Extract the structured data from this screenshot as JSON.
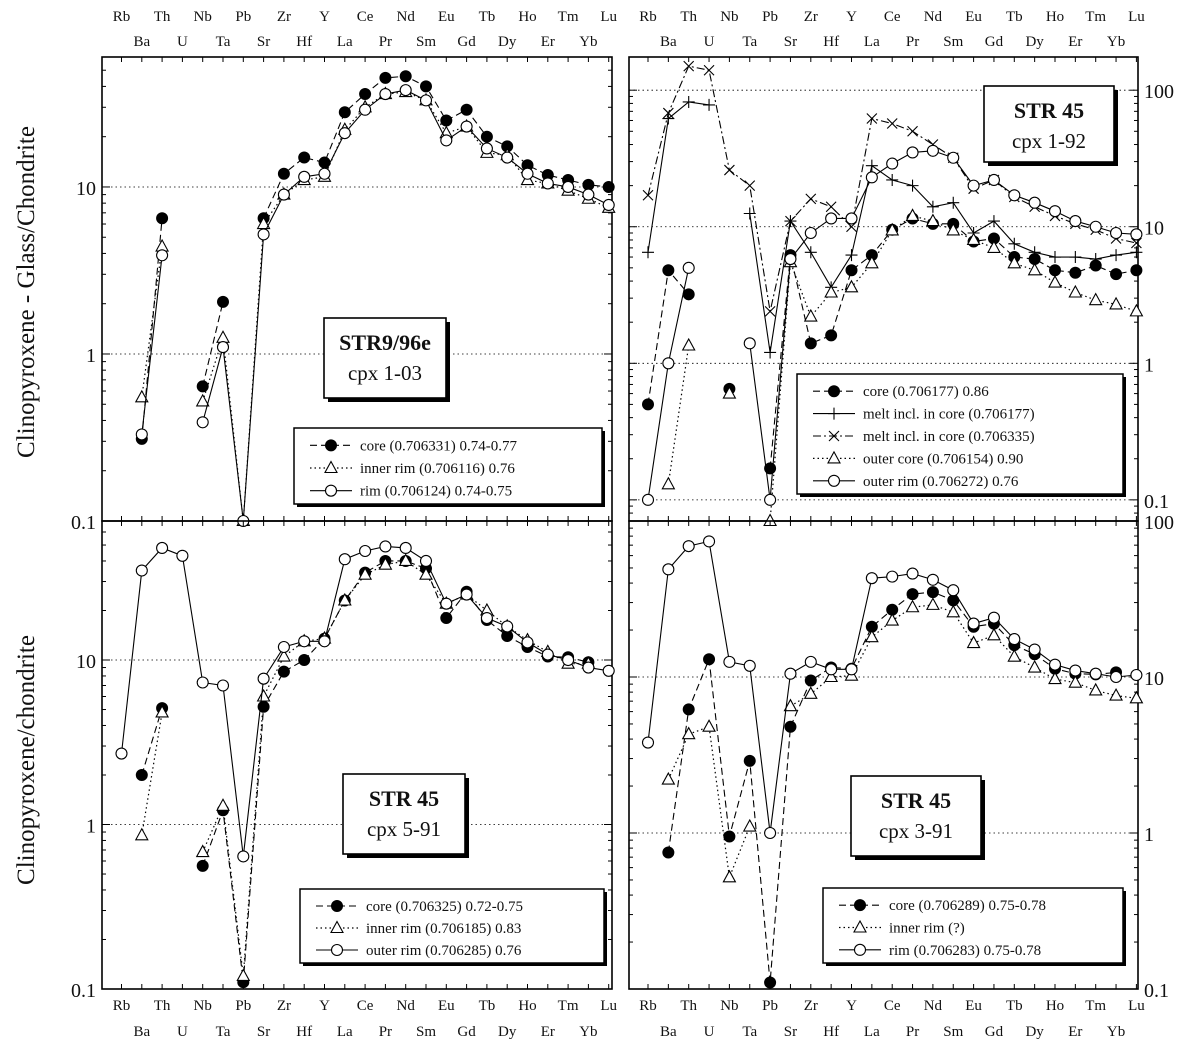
{
  "elements": [
    "Rb",
    "Ba",
    "Th",
    "U",
    "Nb",
    "Ta",
    "Pb",
    "Sr",
    "Zr",
    "Hf",
    "Y",
    "La",
    "Ce",
    "Pr",
    "Nd",
    "Sm",
    "Eu",
    "Gd",
    "Tb",
    "Dy",
    "Ho",
    "Er",
    "Tm",
    "Yb",
    "Lu"
  ],
  "ylabel_top": "Clinopyroxene - Glass/Chondrite",
  "ylabel_bottom": "Clinopyroxene/chondrite",
  "chart_data": [
    {
      "type": "line",
      "yscale": "log",
      "ylim": [
        0.1,
        60
      ],
      "yticks": [
        "0.1",
        "1",
        "10"
      ],
      "label_title": "STR9/96e",
      "label_sub": "cpx 1-03",
      "series": [
        {
          "name": "core (0.706331) 0.74-0.77",
          "marker": "filled-circle",
          "line": "dashed",
          "values": [
            null,
            0.31,
            6.5,
            null,
            0.64,
            2.05,
            null,
            6.5,
            12,
            15,
            14,
            28,
            36,
            45,
            46,
            40,
            25,
            29,
            20,
            17.5,
            13.5,
            11.8,
            11,
            10.3,
            10
          ]
        },
        {
          "name": "inner rim (0.706116) 0.76",
          "marker": "triangle",
          "line": "dotted",
          "values": [
            null,
            0.55,
            4.4,
            null,
            0.52,
            1.25,
            0.1,
            6,
            9,
            11,
            11.5,
            22,
            30,
            36,
            37,
            33,
            21,
            23,
            16,
            15.5,
            11,
            10.5,
            9.5,
            8.5,
            7.5
          ]
        },
        {
          "name": "rim (0.706124) 0.74-0.75",
          "marker": "open-circle",
          "line": "solid",
          "values": [
            null,
            0.33,
            3.9,
            null,
            0.39,
            1.1,
            0.1,
            5.2,
            9,
            11.5,
            12,
            21,
            29,
            36,
            38,
            33,
            19,
            23,
            17,
            15,
            12,
            10.5,
            10,
            9,
            7.8
          ]
        }
      ]
    },
    {
      "type": "line",
      "yscale": "log",
      "ylim": [
        0.07,
        175
      ],
      "yticks": [
        "0.1",
        "1",
        "10",
        "100"
      ],
      "label_title": "STR 45",
      "label_sub": "cpx 1-92",
      "series": [
        {
          "name": "core (0.706177) 0.86",
          "marker": "filled-circle",
          "line": "dashed",
          "values": [
            0.5,
            4.8,
            3.2,
            null,
            0.65,
            null,
            0.17,
            6.2,
            1.4,
            1.6,
            4.8,
            6.2,
            9.5,
            11.5,
            10.5,
            10.5,
            7.8,
            8.2,
            6,
            5.8,
            4.8,
            4.6,
            5.2,
            4.5,
            4.8
          ]
        },
        {
          "name": "melt incl. in core (0.706177)",
          "marker": "plus",
          "line": "solid",
          "values": [
            6.5,
            62,
            82,
            78,
            null,
            12.5,
            1.2,
            11,
            6.5,
            3.6,
            6.2,
            28,
            22,
            20,
            14,
            15,
            9,
            11,
            7.5,
            6.5,
            6,
            6,
            5.8,
            6.2,
            6.5
          ]
        },
        {
          "name": "melt incl. in core (0.706335)",
          "marker": "cross",
          "line": "dash-dot",
          "values": [
            17,
            68,
            150,
            140,
            26,
            20,
            2.4,
            11,
            16,
            14,
            10,
            62,
            57,
            50,
            40,
            32,
            19,
            22,
            16.5,
            14,
            12,
            10.5,
            9.5,
            8.2,
            7.6
          ]
        },
        {
          "name": "outer core (0.706154) 0.90",
          "marker": "triangle",
          "line": "dotted",
          "values": [
            null,
            0.13,
            1.35,
            null,
            0.6,
            null,
            0.07,
            5.5,
            2.2,
            3.3,
            3.6,
            5.4,
            9.4,
            12,
            11,
            9.4,
            8,
            7,
            5.4,
            4.8,
            3.9,
            3.3,
            2.9,
            2.7,
            2.4
          ]
        },
        {
          "name": "outer rim (0.706272) 0.76",
          "marker": "open-circle",
          "line": "solid",
          "values": [
            0.1,
            1,
            5,
            null,
            null,
            1.4,
            0.1,
            5.8,
            9,
            11.5,
            11.5,
            23,
            29,
            35,
            36,
            32,
            20,
            22,
            17,
            15,
            13,
            11,
            10,
            9,
            8.8
          ]
        }
      ]
    },
    {
      "type": "line",
      "yscale": "log",
      "ylim": [
        0.1,
        70
      ],
      "yticks": [
        "0.1",
        "1",
        "10"
      ],
      "label_title": "STR 45",
      "label_sub": "cpx 5-91",
      "series": [
        {
          "name": "core (0.706325) 0.72-0.75",
          "marker": "filled-circle",
          "line": "dashed",
          "values": [
            null,
            2,
            5.1,
            null,
            0.56,
            1.22,
            0.11,
            5.2,
            8.5,
            10,
            13.5,
            23,
            34,
            40,
            40,
            36,
            18,
            26,
            17.5,
            14,
            12,
            10.5,
            10.4,
            9.7,
            null
          ]
        },
        {
          "name": "inner rim (0.706185) 0.83",
          "marker": "triangle",
          "line": "dotted",
          "values": [
            null,
            0.86,
            4.8,
            null,
            0.68,
            1.3,
            0.12,
            6,
            10.5,
            13,
            13.5,
            23,
            33,
            38,
            40,
            33,
            22,
            25,
            20,
            16,
            13.2,
            11.2,
            9.5,
            9.5,
            null
          ]
        },
        {
          "name": "outer rim (0.706285) 0.76",
          "marker": "open-circle",
          "line": "solid",
          "values": [
            2.7,
            35,
            48,
            43,
            7.3,
            7,
            0.64,
            7.7,
            12,
            13,
            13,
            41,
            46,
            49,
            48,
            40,
            22,
            25,
            18,
            16,
            12.8,
            10.8,
            10,
            9,
            8.6
          ]
        }
      ]
    },
    {
      "type": "line",
      "yscale": "log",
      "ylim": [
        0.1,
        100
      ],
      "yticks": [
        "0.1",
        "1",
        "10",
        "100"
      ],
      "label_title": "STR 45",
      "label_sub": "cpx 3-91",
      "series": [
        {
          "name": "core (0.706289) 0.75-0.78",
          "marker": "filled-circle",
          "line": "dashed",
          "values": [
            null,
            0.75,
            6.2,
            13,
            0.95,
            2.9,
            0.11,
            4.8,
            9.5,
            11.5,
            11.3,
            21,
            27,
            34,
            35,
            31,
            21,
            22,
            16,
            14,
            11.3,
            10.5,
            10.4,
            10.7,
            null
          ]
        },
        {
          "name": "inner rim (?)",
          "marker": "triangle",
          "line": "dotted",
          "values": [
            null,
            2.2,
            4.3,
            4.8,
            0.52,
            1.1,
            null,
            6.5,
            7.8,
            10,
            10.2,
            18,
            23,
            28,
            29,
            26,
            16.5,
            18.5,
            13.5,
            11.5,
            9.7,
            9.2,
            8.2,
            7.6,
            7.3
          ]
        },
        {
          "name": "rim (0.706283) 0.75-0.78",
          "marker": "open-circle",
          "line": "solid",
          "values": [
            3.8,
            49,
            69,
            74,
            12.5,
            11.8,
            1,
            10.5,
            12.5,
            11.2,
            11.2,
            43,
            44,
            46,
            42,
            36,
            22,
            24,
            17.5,
            15,
            12,
            11,
            10.5,
            10,
            10.3
          ]
        }
      ]
    }
  ]
}
